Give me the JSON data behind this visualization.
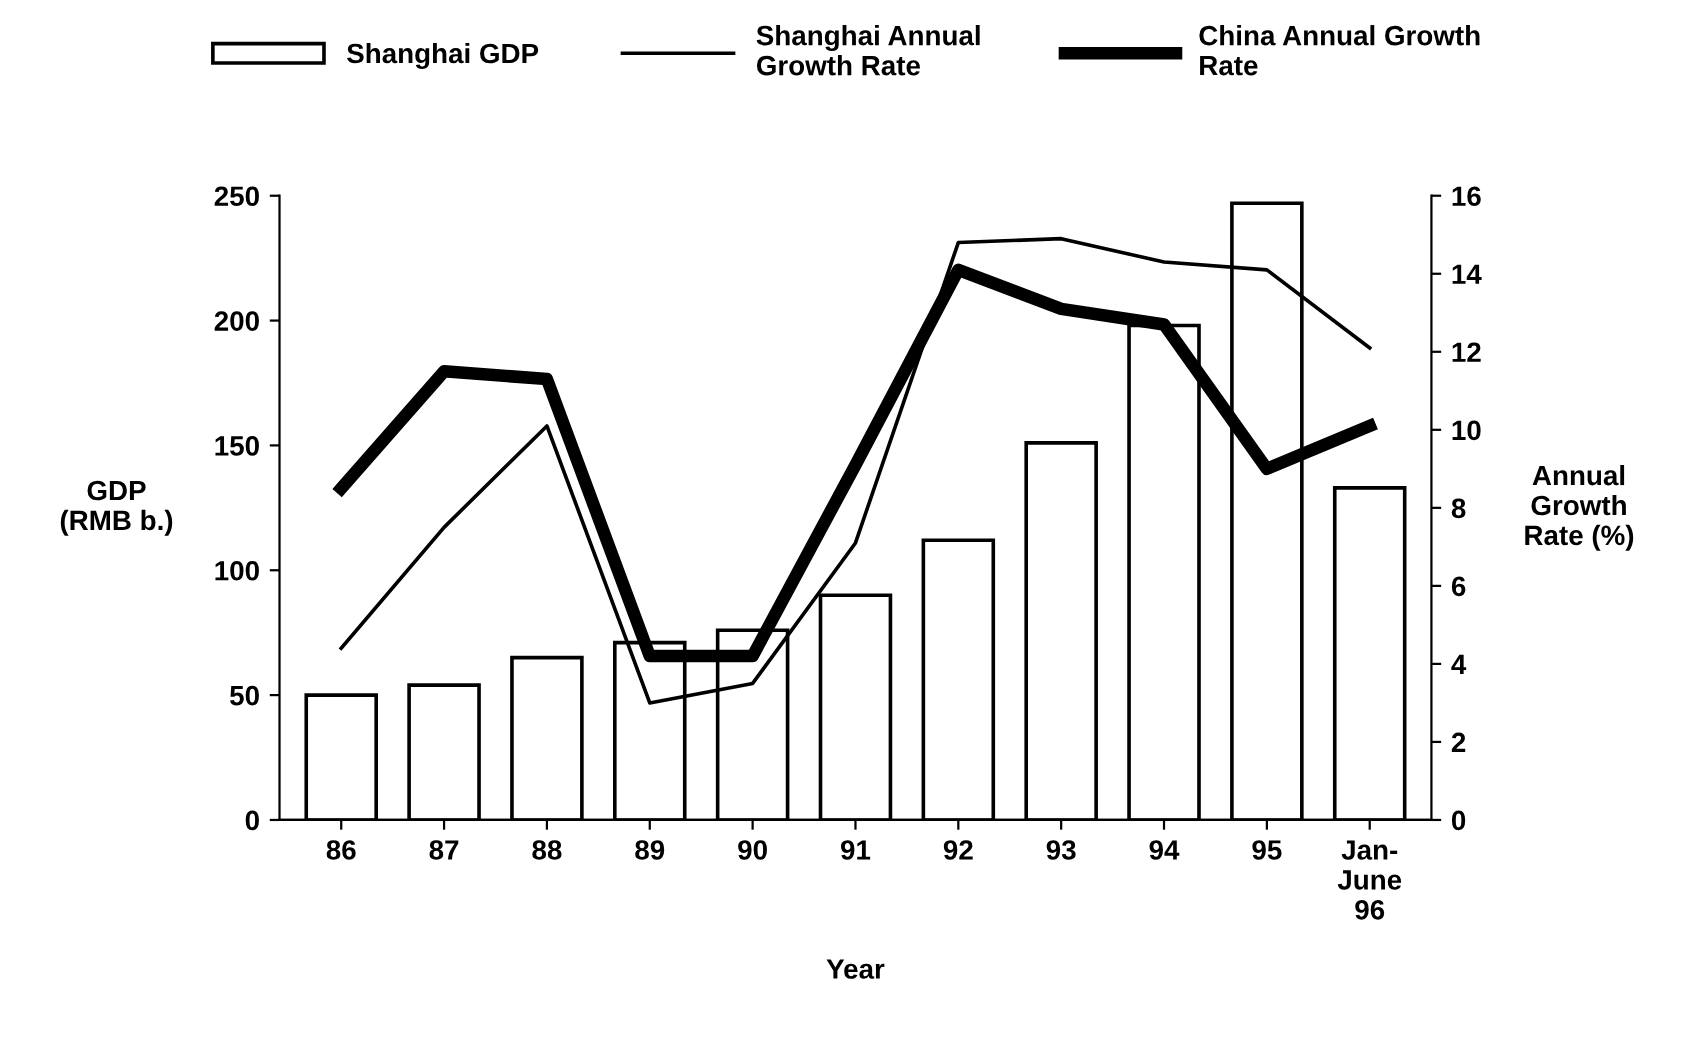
{
  "chart_data": {
    "type": "bar",
    "xlabel": "Year",
    "ylabel": "GDP\n(RMB b.)",
    "y2label": "Annual\nGrowth\nRate (%)",
    "categories": [
      "86",
      "87",
      "88",
      "89",
      "90",
      "91",
      "92",
      "93",
      "94",
      "95",
      "Jan-\nJune\n96"
    ],
    "series": [
      {
        "name": "Shanghai GDP",
        "color": "#ffffff",
        "values": [
          50,
          54,
          65,
          71,
          76,
          90,
          112,
          151,
          198,
          247,
          133
        ]
      },
      {
        "name": "Shanghai Annual\nGrowth Rate",
        "type": "line",
        "axis": "y2",
        "color": "#000000",
        "values": [
          4.4,
          7.5,
          10.1,
          3.0,
          3.5,
          7.1,
          14.8,
          14.9,
          14.3,
          14.1,
          12.1
        ]
      },
      {
        "name": "China Annual Growth\nRate",
        "type": "line",
        "axis": "y2",
        "color": "#000000",
        "values": [
          8.5,
          11.5,
          11.3,
          4.2,
          4.2,
          9.1,
          14.1,
          13.1,
          12.7,
          9.0,
          10.1
        ]
      }
    ],
    "ylim": [
      0,
      250
    ],
    "yticks": [
      0,
      50,
      100,
      150,
      200,
      250
    ],
    "y2lim": [
      0,
      16
    ],
    "y2ticks": [
      0,
      2,
      4,
      6,
      8,
      10,
      12,
      14,
      16
    ],
    "grid": false,
    "legend": "top",
    "marker": "none",
    "line_style": "solid"
  }
}
